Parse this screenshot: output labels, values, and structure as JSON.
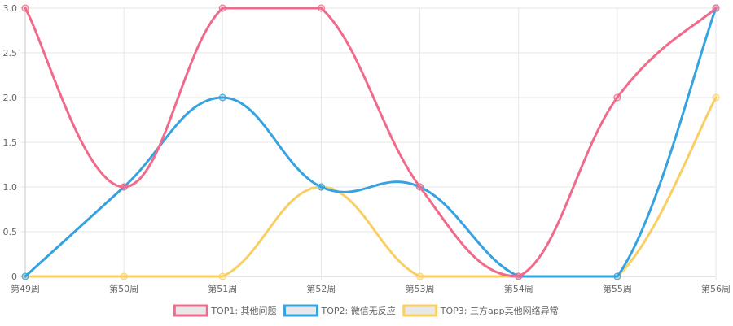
{
  "chart_data": {
    "type": "line",
    "categories": [
      "第49周",
      "第50周",
      "第51周",
      "第52周",
      "第53周",
      "第54周",
      "第55周",
      "第56周"
    ],
    "ylim": [
      0,
      3
    ],
    "yticks": [
      "0",
      "0.5",
      "1.0",
      "1.5",
      "2.0",
      "2.5",
      "3.0"
    ],
    "ytick_values": [
      0,
      0.5,
      1,
      1.5,
      2,
      2.5,
      3
    ],
    "grid": true,
    "smooth": true,
    "legend_position": "bottom",
    "series": [
      {
        "name": "TOP1: 其他问题",
        "color": "#f06b8b",
        "values": [
          3,
          1,
          3,
          3,
          1,
          0,
          2,
          3
        ]
      },
      {
        "name": "TOP2: 微信无反应",
        "color": "#36a2e0",
        "values": [
          0,
          1,
          2,
          1,
          1,
          0,
          0,
          3
        ]
      },
      {
        "name": "TOP3: 三方app其他网络异常",
        "color": "#f9cf63",
        "values": [
          0,
          0,
          0,
          1,
          0,
          0,
          0,
          2
        ]
      }
    ]
  }
}
